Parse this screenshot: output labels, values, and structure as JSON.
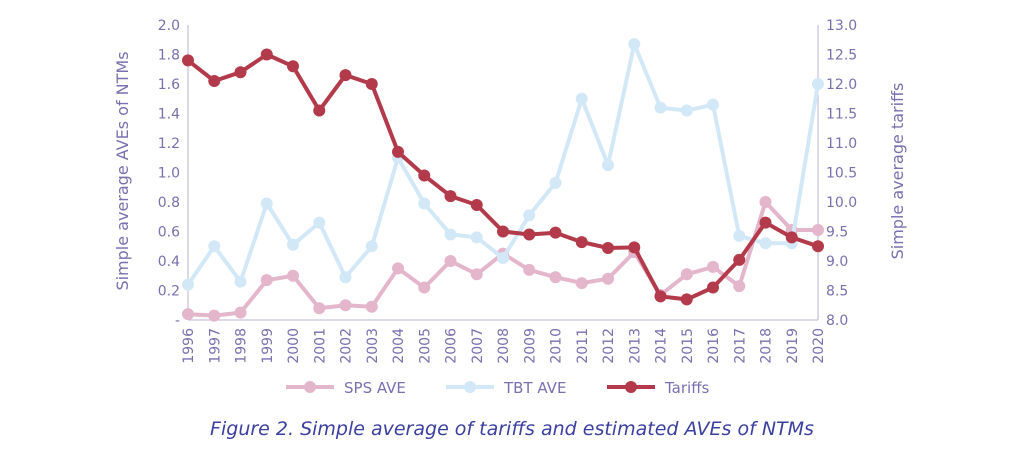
{
  "chart_data": {
    "type": "line",
    "caption": "Figure 2. Simple average of tariffs and estimated AVEs of NTMs",
    "ylabel_left": "Simple average AVEs of NTMs",
    "ylabel_right": "Simple average tariffs",
    "ylim_left": [
      0,
      2.0
    ],
    "ylim_right": [
      8.0,
      13.0
    ],
    "yticks_left": [
      "-",
      "0.2",
      "0.4",
      "0.6",
      "0.8",
      "1.0",
      "1.2",
      "1.4",
      "1.6",
      "1.8",
      "2.0"
    ],
    "yticks_right": [
      "8.0",
      "8.5",
      "9.0",
      "9.5",
      "10.0",
      "10.5",
      "11.0",
      "11.5",
      "12.0",
      "12.5",
      "13.0"
    ],
    "categories": [
      "1996",
      "1997",
      "1998",
      "1999",
      "2000",
      "2001",
      "2002",
      "2003",
      "2004",
      "2005",
      "2006",
      "2007",
      "2008",
      "2009",
      "2010",
      "2011",
      "2012",
      "2013",
      "2014",
      "2015",
      "2016",
      "2017",
      "2018",
      "2019",
      "2020"
    ],
    "legend_position": "bottom",
    "series": [
      {
        "name": "SPS AVE",
        "axis": "left",
        "color": "#e4b6cc",
        "values": [
          0.04,
          0.03,
          0.05,
          0.27,
          0.3,
          0.08,
          0.1,
          0.09,
          0.35,
          0.22,
          0.4,
          0.31,
          0.45,
          0.34,
          0.29,
          0.25,
          0.28,
          0.46,
          0.17,
          0.31,
          0.36,
          0.23,
          0.8,
          0.61,
          0.61
        ]
      },
      {
        "name": "TBT AVE",
        "axis": "left",
        "color": "#d3e8f6",
        "values": [
          0.24,
          0.5,
          0.26,
          0.79,
          0.51,
          0.66,
          0.29,
          0.5,
          1.1,
          0.79,
          0.58,
          0.56,
          0.42,
          0.71,
          0.93,
          1.5,
          1.05,
          1.87,
          1.44,
          1.42,
          1.46,
          0.57,
          0.52,
          0.52,
          1.6
        ]
      },
      {
        "name": "Tariffs",
        "axis": "right",
        "color": "#b33a4a",
        "values": [
          12.4,
          12.05,
          12.2,
          12.5,
          12.3,
          11.55,
          12.15,
          12.0,
          10.85,
          10.45,
          10.1,
          9.95,
          9.5,
          9.45,
          9.48,
          9.32,
          9.22,
          9.23,
          8.4,
          8.35,
          8.55,
          9.02,
          9.65,
          9.4,
          9.25
        ]
      }
    ]
  }
}
